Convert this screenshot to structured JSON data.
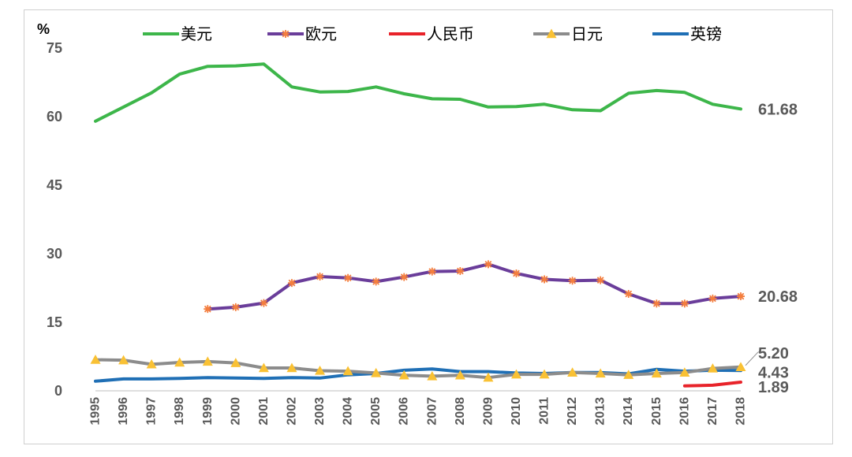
{
  "chart_data": {
    "type": "line",
    "unit_label": "%",
    "x": [
      1995,
      1996,
      1997,
      1998,
      1999,
      2000,
      2001,
      2002,
      2003,
      2004,
      2005,
      2006,
      2007,
      2008,
      2009,
      2010,
      2011,
      2012,
      2013,
      2014,
      2015,
      2016,
      2017,
      2018
    ],
    "xticks": [
      "1995",
      "1996",
      "1997",
      "1998",
      "1999",
      "2000",
      "2001",
      "2002",
      "2003",
      "2004",
      "2005",
      "2006",
      "2007",
      "2008",
      "2009",
      "2010",
      "2011",
      "2012",
      "2013",
      "2014",
      "2015",
      "2016",
      "2017",
      "2018"
    ],
    "ylim": [
      0,
      75
    ],
    "yticks": [
      "0",
      "15",
      "30",
      "45",
      "60",
      "75"
    ],
    "ytick_values": [
      0,
      15,
      30,
      45,
      60,
      75
    ],
    "grid": false,
    "legend_position": "top",
    "series": [
      {
        "name": "美元",
        "color": "#3db64a",
        "marker": "none",
        "values": [
          59.0,
          62.1,
          65.2,
          69.3,
          71.0,
          71.1,
          71.5,
          66.5,
          65.4,
          65.5,
          66.5,
          65.0,
          63.9,
          63.8,
          62.1,
          62.2,
          62.7,
          61.5,
          61.3,
          65.1,
          65.7,
          65.3,
          62.7,
          61.68
        ]
      },
      {
        "name": "欧元",
        "color": "#6a3d9a",
        "marker": "star",
        "marker_color": "#f47e3e",
        "values": [
          null,
          null,
          null,
          null,
          17.9,
          18.3,
          19.2,
          23.6,
          25.0,
          24.7,
          23.9,
          24.9,
          26.1,
          26.2,
          27.7,
          25.7,
          24.4,
          24.1,
          24.2,
          21.2,
          19.1,
          19.1,
          20.2,
          20.68
        ]
      },
      {
        "name": "人民币",
        "color": "#e8232a",
        "marker": "none",
        "values": [
          null,
          null,
          null,
          null,
          null,
          null,
          null,
          null,
          null,
          null,
          null,
          null,
          null,
          null,
          null,
          null,
          null,
          null,
          null,
          null,
          null,
          1.08,
          1.23,
          1.89
        ]
      },
      {
        "name": "日元",
        "color": "#8c8c8c",
        "marker": "triangle",
        "marker_color": "#f9c134",
        "values": [
          6.8,
          6.7,
          5.8,
          6.2,
          6.4,
          6.1,
          5.0,
          5.0,
          4.4,
          4.3,
          3.9,
          3.4,
          3.2,
          3.4,
          2.9,
          3.6,
          3.6,
          4.0,
          3.8,
          3.5,
          3.8,
          4.0,
          4.9,
          5.2
        ]
      },
      {
        "name": "英镑",
        "color": "#1f6fb5",
        "marker": "none",
        "values": [
          2.1,
          2.6,
          2.6,
          2.7,
          2.9,
          2.8,
          2.7,
          2.9,
          2.8,
          3.5,
          3.8,
          4.5,
          4.8,
          4.2,
          4.2,
          3.9,
          3.8,
          4.0,
          4.0,
          3.7,
          4.7,
          4.3,
          4.5,
          4.43
        ]
      }
    ],
    "end_labels": [
      {
        "series": "美元",
        "text": "61.68"
      },
      {
        "series": "欧元",
        "text": "20.68"
      },
      {
        "series": "日元",
        "text": "5.20"
      },
      {
        "series": "英镑",
        "text": "4.43"
      },
      {
        "series": "人民币",
        "text": "1.89"
      }
    ]
  }
}
